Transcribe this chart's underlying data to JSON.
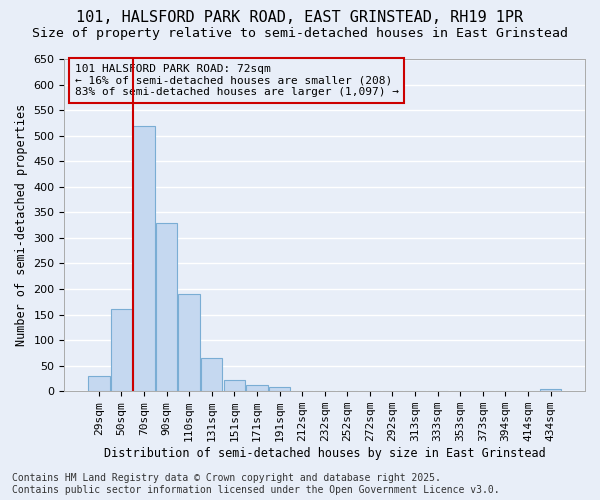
{
  "title_line1": "101, HALSFORD PARK ROAD, EAST GRINSTEAD, RH19 1PR",
  "title_line2": "Size of property relative to semi-detached houses in East Grinstead",
  "categories": [
    "29sqm",
    "50sqm",
    "70sqm",
    "90sqm",
    "110sqm",
    "131sqm",
    "151sqm",
    "171sqm",
    "191sqm",
    "212sqm",
    "232sqm",
    "252sqm",
    "272sqm",
    "292sqm",
    "313sqm",
    "333sqm",
    "353sqm",
    "373sqm",
    "394sqm",
    "414sqm",
    "434sqm"
  ],
  "values": [
    30,
    160,
    518,
    330,
    190,
    65,
    22,
    13,
    8,
    1,
    0,
    0,
    0,
    0,
    0,
    0,
    0,
    0,
    0,
    0,
    4
  ],
  "bar_color": "#c5d8f0",
  "bar_edge_color": "#7aadd4",
  "highlight_bar_index": 2,
  "highlight_line_color": "#cc0000",
  "ylabel": "Number of semi-detached properties",
  "xlabel": "Distribution of semi-detached houses by size in East Grinstead",
  "ylim": [
    0,
    650
  ],
  "yticks": [
    0,
    50,
    100,
    150,
    200,
    250,
    300,
    350,
    400,
    450,
    500,
    550,
    600,
    650
  ],
  "annotation_title": "101 HALSFORD PARK ROAD: 72sqm",
  "annotation_line1": "← 16% of semi-detached houses are smaller (208)",
  "annotation_line2": "83% of semi-detached houses are larger (1,097) →",
  "annotation_box_color": "#cc0000",
  "footer_line1": "Contains HM Land Registry data © Crown copyright and database right 2025.",
  "footer_line2": "Contains public sector information licensed under the Open Government Licence v3.0.",
  "background_color": "#e8eef8",
  "grid_color": "#ffffff",
  "title_fontsize": 11,
  "subtitle_fontsize": 9.5,
  "axis_label_fontsize": 8.5,
  "tick_fontsize": 8,
  "annotation_fontsize": 8,
  "footer_fontsize": 7
}
